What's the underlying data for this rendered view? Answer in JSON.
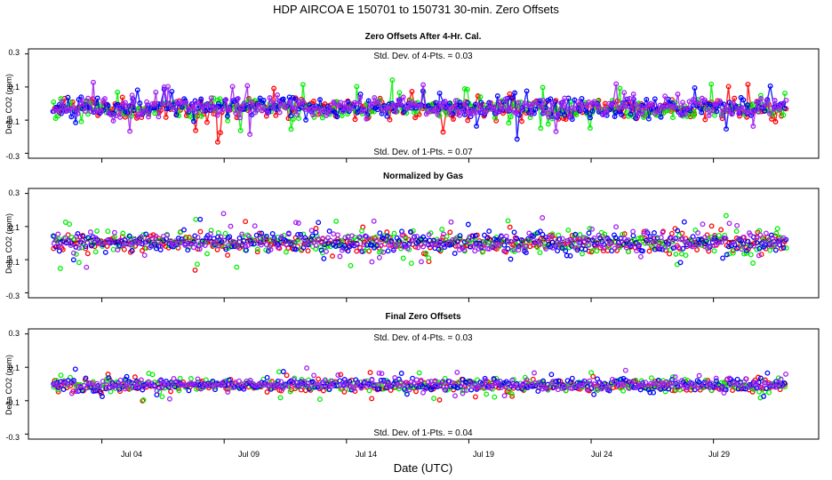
{
  "figure": {
    "title": "HDP    AIRCOA E    150701 to 150731    30-min. Zero Offsets",
    "xlabel": "Date (UTC)"
  },
  "colors": {
    "red": "#ff0000",
    "green": "#00ee00",
    "blue": "#0000ff",
    "purple": "#a020f0",
    "black": "#000000"
  },
  "chart_data": [
    {
      "type": "scatter",
      "title": "Zero Offsets After 4-Hr. Cal.",
      "ylabel": "Delta CO2 (ppm)",
      "ylim": [
        -0.33,
        0.33
      ],
      "yticks": [
        0.3,
        0.1,
        -0.1,
        -0.3
      ],
      "xlim": [
        0.0,
        32.3
      ],
      "xticks": [
        {
          "value": 3.0,
          "label": "Jul 04"
        },
        {
          "value": 8.0,
          "label": "Jul 09"
        },
        {
          "value": 13.0,
          "label": "Jul 14"
        },
        {
          "value": 18.0,
          "label": "Jul 19"
        },
        {
          "value": 23.0,
          "label": "Jul 24"
        },
        {
          "value": 28.0,
          "label": "Jul 29"
        }
      ],
      "annotations": [
        "Std. Dev. of 4-Pts. =  0.03",
        "Std. Dev. of 1-Pts. =  0.07"
      ],
      "series": [
        {
          "name": "red",
          "spread": 0.07
        },
        {
          "name": "green",
          "spread": 0.07
        },
        {
          "name": "blue",
          "spread": 0.07
        },
        {
          "name": "purple",
          "spread": 0.07
        }
      ],
      "x_range": [
        1.0,
        31.0
      ],
      "center": -0.03,
      "connected": true
    },
    {
      "type": "scatter",
      "title": "Normalized by Gas",
      "ylabel": "Delta CO2 (ppm)",
      "ylim": [
        -0.33,
        0.33
      ],
      "yticks": [
        0.3,
        0.1,
        -0.1,
        -0.3
      ],
      "xlim": [
        0.0,
        32.3
      ],
      "xticks": [
        {
          "value": 3.0,
          "label": "Jul 04"
        },
        {
          "value": 8.0,
          "label": "Jul 09"
        },
        {
          "value": 13.0,
          "label": "Jul 14"
        },
        {
          "value": 18.0,
          "label": "Jul 19"
        },
        {
          "value": 23.0,
          "label": "Jul 24"
        },
        {
          "value": 28.0,
          "label": "Jul 29"
        }
      ],
      "annotations": [],
      "series": [
        {
          "name": "red",
          "spread": 0.07
        },
        {
          "name": "green",
          "spread": 0.07
        },
        {
          "name": "blue",
          "spread": 0.07
        },
        {
          "name": "purple",
          "spread": 0.07
        },
        {
          "name": "black",
          "spread": 0.02
        }
      ],
      "x_range": [
        1.0,
        31.0
      ],
      "center": 0.0,
      "connected": false
    },
    {
      "type": "scatter",
      "title": "Final Zero Offsets",
      "ylabel": "Delta CO2 (ppm)",
      "ylim": [
        -0.33,
        0.33
      ],
      "yticks": [
        0.3,
        0.1,
        -0.1,
        -0.3
      ],
      "xlim": [
        0.0,
        32.3
      ],
      "xticks": [
        {
          "value": 3.0,
          "label": "Jul 04"
        },
        {
          "value": 8.0,
          "label": "Jul 09"
        },
        {
          "value": 13.0,
          "label": "Jul 14"
        },
        {
          "value": 18.0,
          "label": "Jul 19"
        },
        {
          "value": 23.0,
          "label": "Jul 24"
        },
        {
          "value": 28.0,
          "label": "Jul 29"
        }
      ],
      "annotations": [
        "Std. Dev. of 4-Pts. =  0.03",
        "Std. Dev. of 1-Pts. =  0.04"
      ],
      "series": [
        {
          "name": "red",
          "spread": 0.04
        },
        {
          "name": "green",
          "spread": 0.04
        },
        {
          "name": "blue",
          "spread": 0.04
        },
        {
          "name": "purple",
          "spread": 0.04
        }
      ],
      "x_range": [
        1.0,
        31.0
      ],
      "center": -0.01,
      "connected": false
    }
  ]
}
